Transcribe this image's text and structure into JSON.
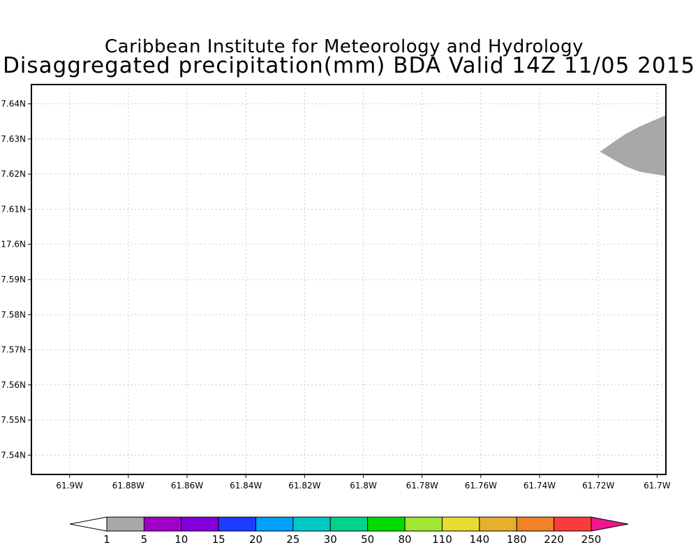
{
  "header": {
    "title": "Caribbean Institute for Meteorology and Hydrology",
    "subtitle": "Disaggregated precipitation(mm) BDA Valid 14Z 11/05 2015"
  },
  "map": {
    "lon_range": [
      -61.913,
      -61.697
    ],
    "lat_range": [
      17.5345,
      17.6455
    ],
    "lon_ticks": [
      {
        "value": -61.9,
        "label": "61.9W"
      },
      {
        "value": -61.88,
        "label": "61.88W"
      },
      {
        "value": -61.86,
        "label": "61.86W"
      },
      {
        "value": -61.84,
        "label": "61.84W"
      },
      {
        "value": -61.82,
        "label": "61.82W"
      },
      {
        "value": -61.8,
        "label": "61.8W"
      },
      {
        "value": -61.78,
        "label": "61.78W"
      },
      {
        "value": -61.76,
        "label": "61.76W"
      },
      {
        "value": -61.74,
        "label": "61.74W"
      },
      {
        "value": -61.72,
        "label": "61.72W"
      },
      {
        "value": -61.7,
        "label": "61.7W"
      }
    ],
    "lat_ticks": [
      {
        "value": 17.64,
        "label": "7.64N"
      },
      {
        "value": 17.63,
        "label": "7.63N"
      },
      {
        "value": 17.62,
        "label": "7.62N"
      },
      {
        "value": 17.61,
        "label": "7.61N"
      },
      {
        "value": 17.6,
        "label": "17.6N"
      },
      {
        "value": 17.59,
        "label": "7.59N"
      },
      {
        "value": 17.58,
        "label": "7.58N"
      },
      {
        "value": 17.57,
        "label": "7.57N"
      },
      {
        "value": 17.56,
        "label": "7.56N"
      },
      {
        "value": 17.55,
        "label": "7.55N"
      },
      {
        "value": 17.54,
        "label": "7.54N"
      }
    ],
    "grid": true,
    "precip_areas": [
      {
        "category": "1-5",
        "color": "#a8a8a8",
        "outline": [
          [
            -61.697,
            17.6368
          ],
          [
            -61.706,
            17.6335
          ],
          [
            -61.711,
            17.6313
          ],
          [
            -61.7195,
            17.6264
          ],
          [
            -61.711,
            17.6223
          ],
          [
            -61.706,
            17.6207
          ],
          [
            -61.697,
            17.6195
          ]
        ]
      }
    ]
  },
  "colorbar": {
    "labels": [
      "1",
      "5",
      "10",
      "15",
      "20",
      "25",
      "30",
      "50",
      "80",
      "110",
      "140",
      "180",
      "220",
      "250"
    ],
    "below_color": "#ffffff",
    "above_color": "#f0168c",
    "colors": [
      "#a8a8a8",
      "#a000c8",
      "#8200dc",
      "#1e3cff",
      "#00a0ff",
      "#00c8c8",
      "#00d28c",
      "#00dc00",
      "#a0e632",
      "#e6dc32",
      "#e6af2d",
      "#f08228",
      "#fa3c3c"
    ]
  }
}
